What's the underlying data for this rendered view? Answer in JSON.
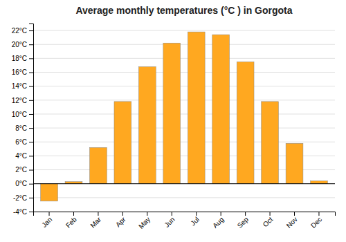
{
  "chart_data": {
    "type": "bar",
    "title": "Average monthly temperatures (°C ) in Gorgota",
    "categories": [
      "Jan",
      "Feb",
      "Mar",
      "Apr",
      "May",
      "Jun",
      "Jul",
      "Aug",
      "Sep",
      "Oct",
      "Nov",
      "Dec"
    ],
    "values": [
      -2.5,
      0.3,
      5.2,
      11.8,
      16.8,
      20.2,
      21.8,
      21.4,
      17.5,
      11.8,
      5.8,
      0.4
    ],
    "color": "#FFA820",
    "ylim": [
      -4,
      23
    ],
    "yticks": [
      {
        "value": -4,
        "label": "-4°C"
      },
      {
        "value": -2,
        "label": "-2°C"
      },
      {
        "value": 0,
        "label": "0°C"
      },
      {
        "value": 2,
        "label": "2°C"
      },
      {
        "value": 4,
        "label": "4°C"
      },
      {
        "value": 6,
        "label": "6°C"
      },
      {
        "value": 8,
        "label": "8°C"
      },
      {
        "value": 10,
        "label": "10°C"
      },
      {
        "value": 12,
        "label": "12°C"
      },
      {
        "value": 14,
        "label": "14°C"
      },
      {
        "value": 16,
        "label": "16°C"
      },
      {
        "value": 18,
        "label": "18°C"
      },
      {
        "value": 20,
        "label": "20°C"
      },
      {
        "value": 22,
        "label": "22°C"
      }
    ],
    "grid": true
  }
}
